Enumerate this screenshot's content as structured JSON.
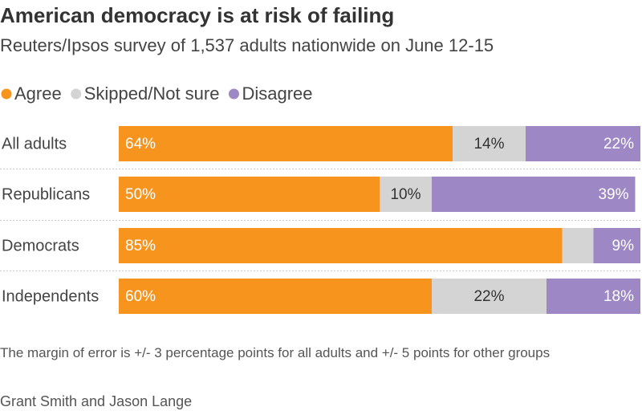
{
  "chart_data": {
    "type": "stacked-bar-horizontal",
    "title": "American democracy is at risk of failing",
    "subtitle": "Reuters/Ipsos survey of 1,537 adults nationwide on June 12-15",
    "categories": [
      "All adults",
      "Republicans",
      "Democrats",
      "Independents"
    ],
    "series": [
      {
        "name": "Agree",
        "color": "#f7941d",
        "values": [
          64,
          50,
          85,
          60
        ],
        "value_labels": [
          "64%",
          "50%",
          "85%",
          "60%"
        ]
      },
      {
        "name": "Skipped/Not sure",
        "color": "#d4d4d4",
        "values": [
          14,
          10,
          6,
          22
        ],
        "value_labels": [
          "14%",
          "10%",
          null,
          "22%"
        ]
      },
      {
        "name": "Disagree",
        "color": "#9d87c5",
        "values": [
          22,
          39,
          9,
          18
        ],
        "value_labels": [
          "22%",
          "39%",
          "9%",
          "18%"
        ]
      }
    ],
    "xlim": [
      0,
      100
    ],
    "note": "The margin of error is +/- 3 percentage points for all adults and +/- 5 points for other groups",
    "source": "Grant Smith and Jason Lange"
  }
}
